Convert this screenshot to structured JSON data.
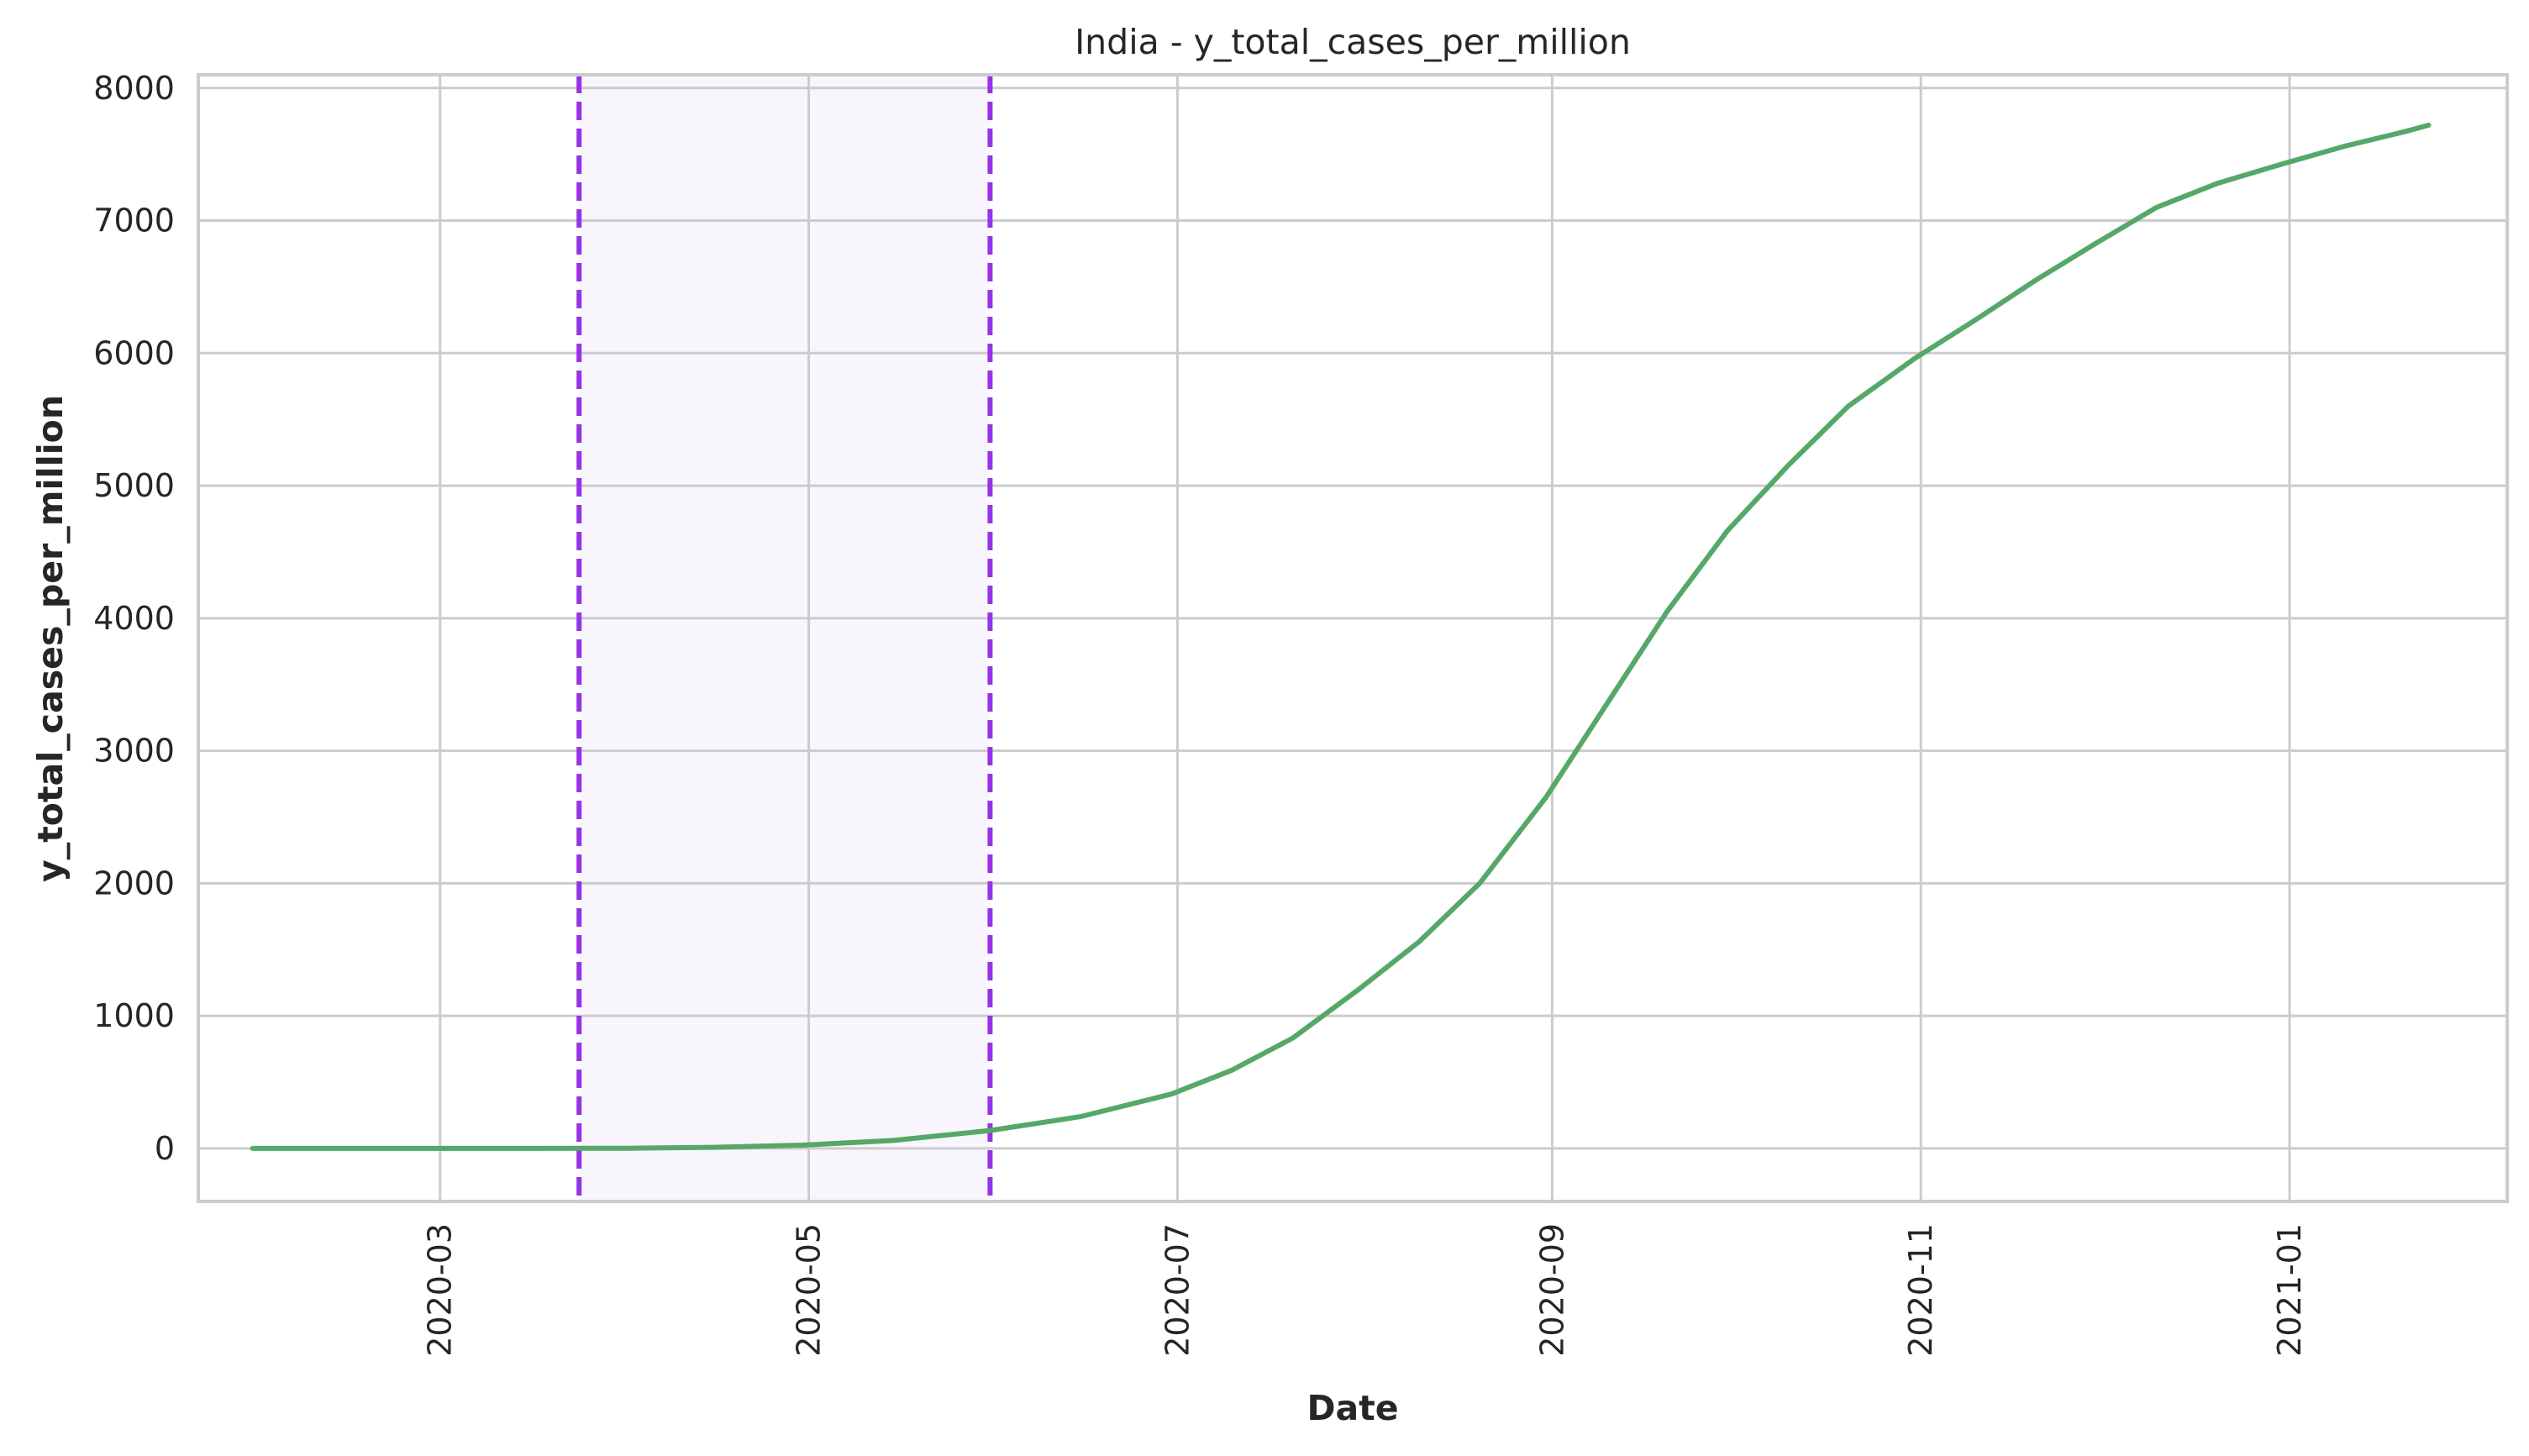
{
  "chart_data": {
    "type": "line",
    "title": "India - y_total_cases_per_million",
    "xlabel": "Date",
    "ylabel": "y_total_cases_per_million",
    "xlim": [
      "2020-01-21",
      "2021-02-06"
    ],
    "ylim": [
      -400,
      8100
    ],
    "x_ticks": [
      "2020-03",
      "2020-05",
      "2020-07",
      "2020-09",
      "2020-11",
      "2021-01"
    ],
    "x_tick_dates": [
      "2020-03-01",
      "2020-05-01",
      "2020-07-01",
      "2020-09-01",
      "2020-11-01",
      "2021-01-01"
    ],
    "y_ticks": [
      0,
      1000,
      2000,
      3000,
      4000,
      5000,
      6000,
      7000,
      8000
    ],
    "grid": true,
    "legend": "none",
    "colors": {
      "line": "#55a868",
      "marker": "#9633e8",
      "shade": "#f8f5fd",
      "grid": "#cccccc",
      "spine": "#cccccc"
    },
    "highlight_region": {
      "start": "2020-03-24",
      "end": "2020-05-31"
    },
    "series": [
      {
        "points": [
          [
            "2020-01-30",
            0
          ],
          [
            "2020-02-15",
            0
          ],
          [
            "2020-03-01",
            0
          ],
          [
            "2020-03-15",
            0
          ],
          [
            "2020-03-24",
            0.4
          ],
          [
            "2020-04-01",
            1.4
          ],
          [
            "2020-04-15",
            8
          ],
          [
            "2020-04-30",
            25
          ],
          [
            "2020-05-15",
            60
          ],
          [
            "2020-05-31",
            135
          ],
          [
            "2020-06-15",
            240
          ],
          [
            "2020-06-30",
            410
          ],
          [
            "2020-07-10",
            590
          ],
          [
            "2020-07-20",
            830
          ],
          [
            "2020-07-31",
            1200
          ],
          [
            "2020-08-10",
            1560
          ],
          [
            "2020-08-20",
            2000
          ],
          [
            "2020-08-31",
            2650
          ],
          [
            "2020-09-10",
            3350
          ],
          [
            "2020-09-20",
            4050
          ],
          [
            "2020-09-30",
            4660
          ],
          [
            "2020-10-10",
            5150
          ],
          [
            "2020-10-20",
            5600
          ],
          [
            "2020-10-31",
            5960
          ],
          [
            "2020-11-10",
            6250
          ],
          [
            "2020-11-20",
            6550
          ],
          [
            "2020-11-30",
            6830
          ],
          [
            "2020-12-10",
            7100
          ],
          [
            "2020-12-20",
            7280
          ],
          [
            "2020-12-31",
            7430
          ],
          [
            "2021-01-10",
            7560
          ],
          [
            "2021-01-20",
            7670
          ],
          [
            "2021-01-24",
            7720
          ]
        ]
      }
    ]
  }
}
